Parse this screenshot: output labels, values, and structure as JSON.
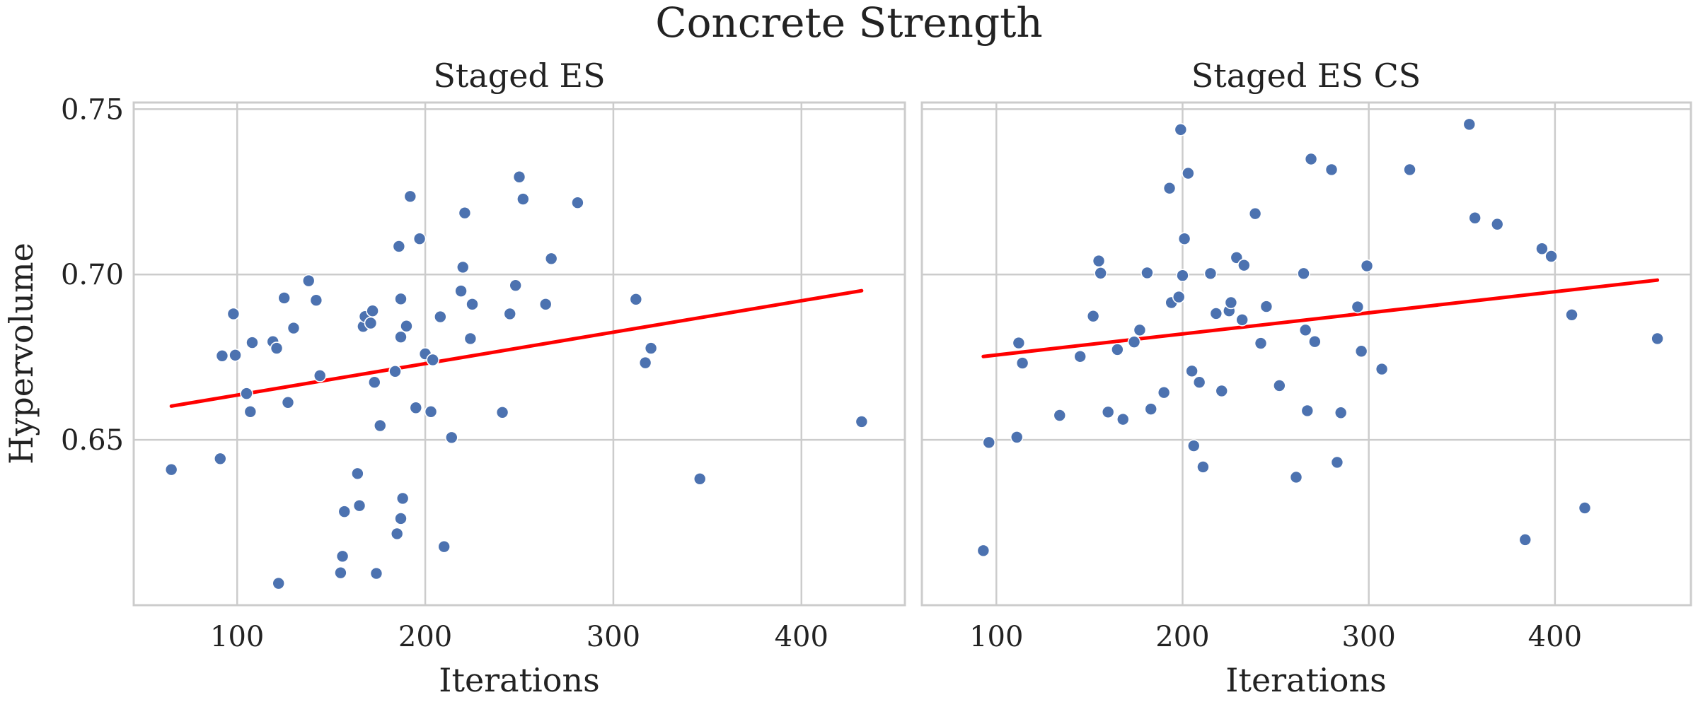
{
  "figure_title": "Concrete Strength",
  "chart_data": [
    {
      "type": "scatter",
      "title": "Staged ES",
      "xlabel": "Iterations",
      "ylabel": "Hypervolume",
      "xlim": [
        45,
        455
      ],
      "ylim": [
        0.6,
        0.752
      ],
      "xticks": [
        100,
        200,
        300,
        400
      ],
      "yticks": [
        0.65,
        0.7,
        0.75
      ],
      "ytick_labels": [
        "0.65",
        "0.70",
        "0.75"
      ],
      "grid": true,
      "point_color": "#4c72b0",
      "trend_color": "#ff0000",
      "trend": {
        "x": [
          65,
          432
        ],
        "y": [
          0.6602,
          0.6951
        ]
      },
      "points": [
        [
          65,
          0.641
        ],
        [
          91,
          0.6443
        ],
        [
          92,
          0.6754
        ],
        [
          98,
          0.6881
        ],
        [
          99,
          0.6756
        ],
        [
          105,
          0.664
        ],
        [
          107,
          0.6585
        ],
        [
          108,
          0.6794
        ],
        [
          119,
          0.6797
        ],
        [
          121,
          0.6777
        ],
        [
          122,
          0.6066
        ],
        [
          125,
          0.6929
        ],
        [
          127,
          0.6613
        ],
        [
          130,
          0.6838
        ],
        [
          138,
          0.6981
        ],
        [
          142,
          0.6922
        ],
        [
          144,
          0.6694
        ],
        [
          155,
          0.6098
        ],
        [
          156,
          0.6148
        ],
        [
          157,
          0.6283
        ],
        [
          164,
          0.6398
        ],
        [
          165,
          0.6301
        ],
        [
          167,
          0.6843
        ],
        [
          168,
          0.6873
        ],
        [
          171,
          0.6853
        ],
        [
          172,
          0.689
        ],
        [
          173,
          0.6674
        ],
        [
          174,
          0.6096
        ],
        [
          176,
          0.6543
        ],
        [
          184,
          0.6707
        ],
        [
          185,
          0.6216
        ],
        [
          186,
          0.7085
        ],
        [
          187,
          0.6811
        ],
        [
          187,
          0.6926
        ],
        [
          187,
          0.6262
        ],
        [
          188,
          0.6323
        ],
        [
          190,
          0.6844
        ],
        [
          192,
          0.7236
        ],
        [
          195,
          0.6597
        ],
        [
          197,
          0.7108
        ],
        [
          200,
          0.676
        ],
        [
          203,
          0.6585
        ],
        [
          204,
          0.6742
        ],
        [
          208,
          0.6872
        ],
        [
          210,
          0.6177
        ],
        [
          214,
          0.6507
        ],
        [
          219,
          0.695
        ],
        [
          220,
          0.7022
        ],
        [
          221,
          0.7186
        ],
        [
          224,
          0.6806
        ],
        [
          225,
          0.691
        ],
        [
          241,
          0.6583
        ],
        [
          245,
          0.6881
        ],
        [
          248,
          0.6967
        ],
        [
          250,
          0.7295
        ],
        [
          252,
          0.7228
        ],
        [
          264,
          0.691
        ],
        [
          267,
          0.7048
        ],
        [
          281,
          0.7217
        ],
        [
          312,
          0.6925
        ],
        [
          317,
          0.6733
        ],
        [
          320,
          0.6777
        ],
        [
          346,
          0.6382
        ],
        [
          432,
          0.6555
        ]
      ]
    },
    {
      "type": "scatter",
      "title": "Staged ES CS",
      "xlabel": "Iterations",
      "ylabel": "",
      "xlim": [
        60,
        473
      ],
      "ylim": [
        0.6,
        0.752
      ],
      "xticks": [
        100,
        200,
        300,
        400
      ],
      "yticks": [
        0.65,
        0.7,
        0.75
      ],
      "grid": true,
      "point_color": "#4c72b0",
      "trend_color": "#ff0000",
      "trend": {
        "x": [
          93,
          455
        ],
        "y": [
          0.6752,
          0.6983
        ]
      },
      "points": [
        [
          93,
          0.6165
        ],
        [
          96,
          0.6492
        ],
        [
          111,
          0.6508
        ],
        [
          112,
          0.6793
        ],
        [
          114,
          0.6732
        ],
        [
          134,
          0.6574
        ],
        [
          145,
          0.6752
        ],
        [
          152,
          0.6874
        ],
        [
          155,
          0.7041
        ],
        [
          156,
          0.7004
        ],
        [
          160,
          0.6584
        ],
        [
          165,
          0.6773
        ],
        [
          168,
          0.6562
        ],
        [
          174,
          0.6796
        ],
        [
          177,
          0.6832
        ],
        [
          181,
          0.7005
        ],
        [
          183,
          0.6593
        ],
        [
          190,
          0.6643
        ],
        [
          193,
          0.7261
        ],
        [
          194,
          0.6915
        ],
        [
          198,
          0.6932
        ],
        [
          199,
          0.7438
        ],
        [
          200,
          0.6997
        ],
        [
          201,
          0.7108
        ],
        [
          203,
          0.7306
        ],
        [
          205,
          0.6708
        ],
        [
          206,
          0.6482
        ],
        [
          209,
          0.6674
        ],
        [
          211,
          0.6418
        ],
        [
          215,
          0.7003
        ],
        [
          218,
          0.6882
        ],
        [
          221,
          0.6648
        ],
        [
          225,
          0.689
        ],
        [
          226,
          0.6915
        ],
        [
          229,
          0.7051
        ],
        [
          232,
          0.6863
        ],
        [
          233,
          0.7028
        ],
        [
          239,
          0.7184
        ],
        [
          242,
          0.6792
        ],
        [
          245,
          0.6903
        ],
        [
          252,
          0.6664
        ],
        [
          261,
          0.6387
        ],
        [
          265,
          0.7003
        ],
        [
          266,
          0.6832
        ],
        [
          267,
          0.6588
        ],
        [
          269,
          0.7349
        ],
        [
          271,
          0.6797
        ],
        [
          280,
          0.7317
        ],
        [
          283,
          0.6432
        ],
        [
          285,
          0.6582
        ],
        [
          294,
          0.6902
        ],
        [
          296,
          0.6768
        ],
        [
          299,
          0.7026
        ],
        [
          307,
          0.6714
        ],
        [
          322,
          0.7317
        ],
        [
          354,
          0.7454
        ],
        [
          357,
          0.7171
        ],
        [
          369,
          0.7152
        ],
        [
          384,
          0.6198
        ],
        [
          393,
          0.7078
        ],
        [
          398,
          0.7055
        ],
        [
          409,
          0.6878
        ],
        [
          416,
          0.6294
        ],
        [
          455,
          0.6806
        ]
      ]
    }
  ]
}
